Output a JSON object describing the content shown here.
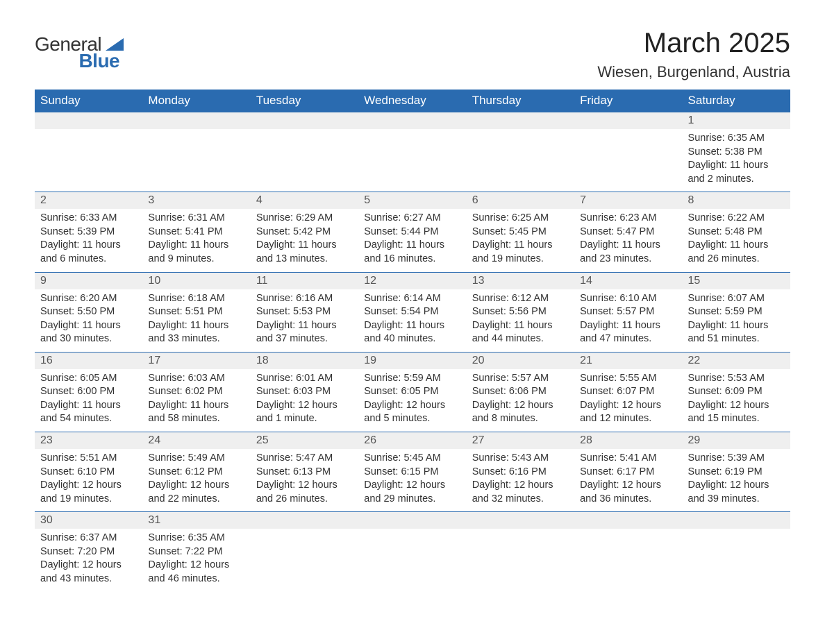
{
  "logo": {
    "word1": "General",
    "word2": "Blue"
  },
  "title": "March 2025",
  "location": "Wiesen, Burgenland, Austria",
  "colors": {
    "header_bg": "#2a6bb0",
    "header_text": "#ffffff",
    "daynum_bg": "#efefef",
    "border": "#2a6bb0",
    "body_text": "#333333"
  },
  "typography": {
    "title_fontsize": 40,
    "location_fontsize": 22,
    "weekday_fontsize": 17,
    "daynum_fontsize": 16,
    "detail_fontsize": 14.5
  },
  "weekdays": [
    "Sunday",
    "Monday",
    "Tuesday",
    "Wednesday",
    "Thursday",
    "Friday",
    "Saturday"
  ],
  "labels": {
    "sunrise": "Sunrise:",
    "sunset": "Sunset:",
    "daylight": "Daylight:"
  },
  "weeks": [
    [
      null,
      null,
      null,
      null,
      null,
      null,
      {
        "n": "1",
        "sunrise": "6:35 AM",
        "sunset": "5:38 PM",
        "daylight": "11 hours and 2 minutes."
      }
    ],
    [
      {
        "n": "2",
        "sunrise": "6:33 AM",
        "sunset": "5:39 PM",
        "daylight": "11 hours and 6 minutes."
      },
      {
        "n": "3",
        "sunrise": "6:31 AM",
        "sunset": "5:41 PM",
        "daylight": "11 hours and 9 minutes."
      },
      {
        "n": "4",
        "sunrise": "6:29 AM",
        "sunset": "5:42 PM",
        "daylight": "11 hours and 13 minutes."
      },
      {
        "n": "5",
        "sunrise": "6:27 AM",
        "sunset": "5:44 PM",
        "daylight": "11 hours and 16 minutes."
      },
      {
        "n": "6",
        "sunrise": "6:25 AM",
        "sunset": "5:45 PM",
        "daylight": "11 hours and 19 minutes."
      },
      {
        "n": "7",
        "sunrise": "6:23 AM",
        "sunset": "5:47 PM",
        "daylight": "11 hours and 23 minutes."
      },
      {
        "n": "8",
        "sunrise": "6:22 AM",
        "sunset": "5:48 PM",
        "daylight": "11 hours and 26 minutes."
      }
    ],
    [
      {
        "n": "9",
        "sunrise": "6:20 AM",
        "sunset": "5:50 PM",
        "daylight": "11 hours and 30 minutes."
      },
      {
        "n": "10",
        "sunrise": "6:18 AM",
        "sunset": "5:51 PM",
        "daylight": "11 hours and 33 minutes."
      },
      {
        "n": "11",
        "sunrise": "6:16 AM",
        "sunset": "5:53 PM",
        "daylight": "11 hours and 37 minutes."
      },
      {
        "n": "12",
        "sunrise": "6:14 AM",
        "sunset": "5:54 PM",
        "daylight": "11 hours and 40 minutes."
      },
      {
        "n": "13",
        "sunrise": "6:12 AM",
        "sunset": "5:56 PM",
        "daylight": "11 hours and 44 minutes."
      },
      {
        "n": "14",
        "sunrise": "6:10 AM",
        "sunset": "5:57 PM",
        "daylight": "11 hours and 47 minutes."
      },
      {
        "n": "15",
        "sunrise": "6:07 AM",
        "sunset": "5:59 PM",
        "daylight": "11 hours and 51 minutes."
      }
    ],
    [
      {
        "n": "16",
        "sunrise": "6:05 AM",
        "sunset": "6:00 PM",
        "daylight": "11 hours and 54 minutes."
      },
      {
        "n": "17",
        "sunrise": "6:03 AM",
        "sunset": "6:02 PM",
        "daylight": "11 hours and 58 minutes."
      },
      {
        "n": "18",
        "sunrise": "6:01 AM",
        "sunset": "6:03 PM",
        "daylight": "12 hours and 1 minute."
      },
      {
        "n": "19",
        "sunrise": "5:59 AM",
        "sunset": "6:05 PM",
        "daylight": "12 hours and 5 minutes."
      },
      {
        "n": "20",
        "sunrise": "5:57 AM",
        "sunset": "6:06 PM",
        "daylight": "12 hours and 8 minutes."
      },
      {
        "n": "21",
        "sunrise": "5:55 AM",
        "sunset": "6:07 PM",
        "daylight": "12 hours and 12 minutes."
      },
      {
        "n": "22",
        "sunrise": "5:53 AM",
        "sunset": "6:09 PM",
        "daylight": "12 hours and 15 minutes."
      }
    ],
    [
      {
        "n": "23",
        "sunrise": "5:51 AM",
        "sunset": "6:10 PM",
        "daylight": "12 hours and 19 minutes."
      },
      {
        "n": "24",
        "sunrise": "5:49 AM",
        "sunset": "6:12 PM",
        "daylight": "12 hours and 22 minutes."
      },
      {
        "n": "25",
        "sunrise": "5:47 AM",
        "sunset": "6:13 PM",
        "daylight": "12 hours and 26 minutes."
      },
      {
        "n": "26",
        "sunrise": "5:45 AM",
        "sunset": "6:15 PM",
        "daylight": "12 hours and 29 minutes."
      },
      {
        "n": "27",
        "sunrise": "5:43 AM",
        "sunset": "6:16 PM",
        "daylight": "12 hours and 32 minutes."
      },
      {
        "n": "28",
        "sunrise": "5:41 AM",
        "sunset": "6:17 PM",
        "daylight": "12 hours and 36 minutes."
      },
      {
        "n": "29",
        "sunrise": "5:39 AM",
        "sunset": "6:19 PM",
        "daylight": "12 hours and 39 minutes."
      }
    ],
    [
      {
        "n": "30",
        "sunrise": "6:37 AM",
        "sunset": "7:20 PM",
        "daylight": "12 hours and 43 minutes."
      },
      {
        "n": "31",
        "sunrise": "6:35 AM",
        "sunset": "7:22 PM",
        "daylight": "12 hours and 46 minutes."
      },
      null,
      null,
      null,
      null,
      null
    ]
  ]
}
